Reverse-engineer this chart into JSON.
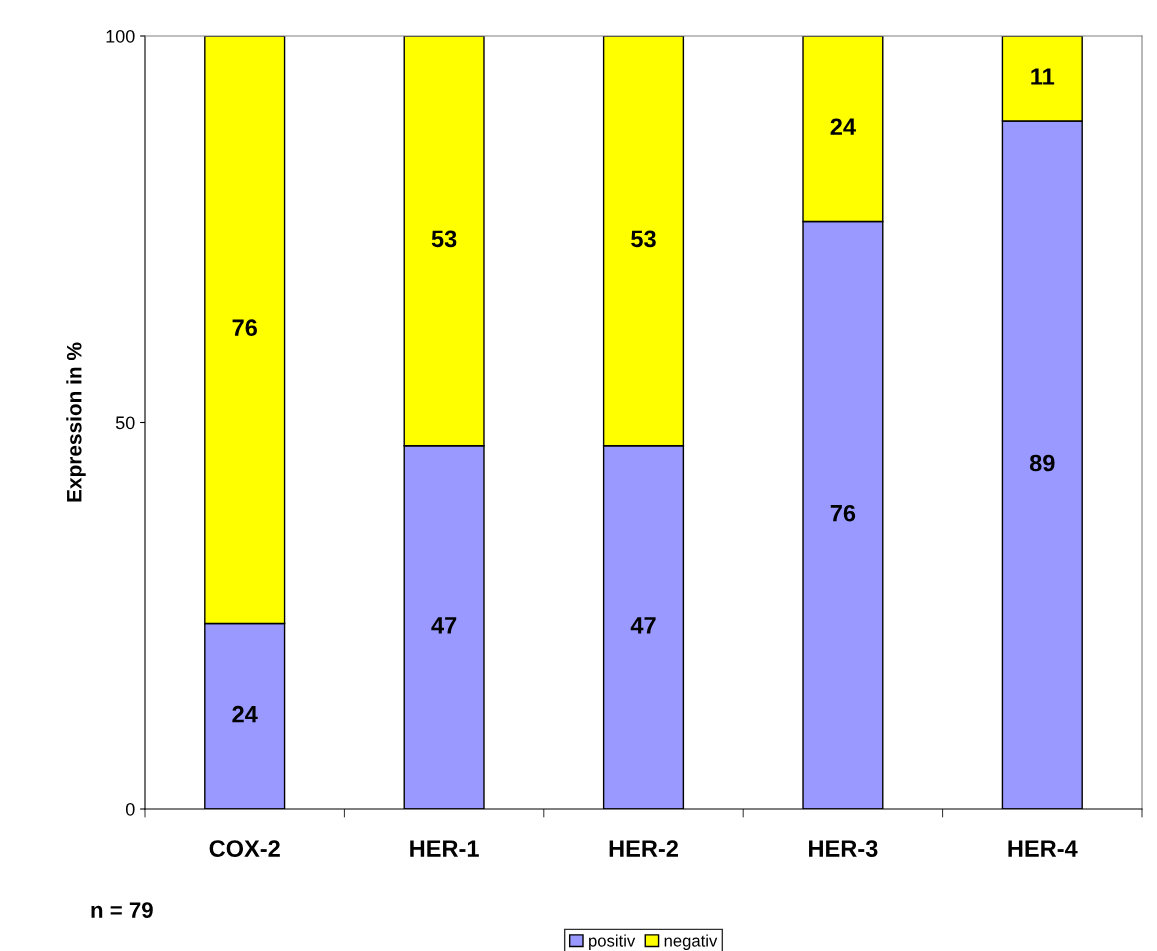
{
  "chart_data": {
    "type": "bar",
    "stacked": true,
    "ylabel": "Expression in %",
    "categories": [
      "COX-2",
      "HER-1",
      "HER-2",
      "HER-3",
      "HER-4"
    ],
    "series": [
      {
        "name": "positiv",
        "color": "#9999ff",
        "values": [
          24,
          47,
          47,
          76,
          89
        ]
      },
      {
        "name": "negativ",
        "color": "#ffff00",
        "values": [
          76,
          53,
          53,
          24,
          11
        ]
      }
    ],
    "ylim": [
      0,
      100
    ],
    "yticks": [
      0,
      50,
      100
    ],
    "data_labels": true,
    "grid": false,
    "legend": "bottom",
    "annotations": [
      "n = 79"
    ]
  }
}
